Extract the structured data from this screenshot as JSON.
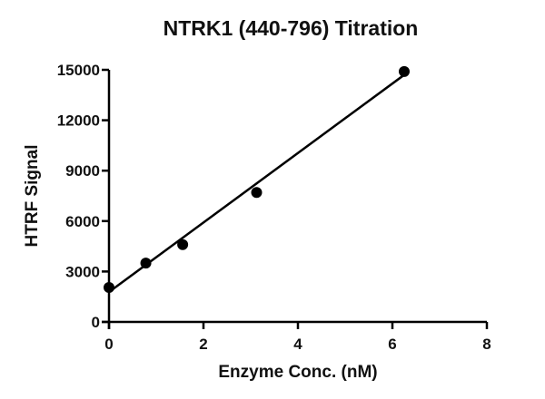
{
  "chart_data": {
    "type": "scatter",
    "title": "NTRK1 (440-796) Titration",
    "xlabel": "Enzyme Conc. (nM)",
    "ylabel": "HTRF Signal",
    "xlim": [
      0,
      8
    ],
    "ylim": [
      0,
      15000
    ],
    "xticks": [
      0,
      2,
      4,
      6,
      8
    ],
    "yticks": [
      0,
      3000,
      6000,
      9000,
      12000,
      15000
    ],
    "grid": false,
    "legend": null,
    "series": [
      {
        "name": "NTRK1 (440-796)",
        "x": [
          0,
          0.78,
          1.56,
          3.125,
          6.25
        ],
        "y": [
          2050,
          3500,
          4600,
          7700,
          14900
        ],
        "marker": "circle",
        "color": "#000000"
      }
    ],
    "fit_line": {
      "type": "linear",
      "x": [
        0,
        6.25
      ],
      "y": [
        1780,
        14700
      ],
      "color": "#000000"
    }
  }
}
